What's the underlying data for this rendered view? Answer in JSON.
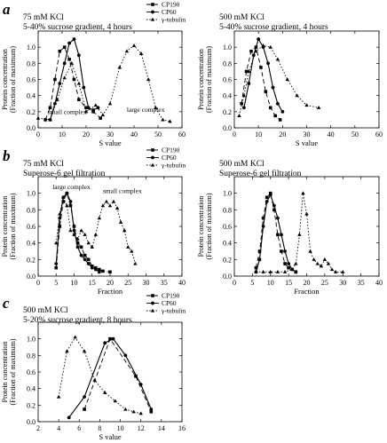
{
  "panel_letters": [
    "a",
    "b",
    "c"
  ],
  "chart_data": [
    {
      "id": "a-left",
      "panel": "a",
      "type": "line",
      "title_lines": [
        "75 mM KCl",
        "5-40% sucrose gradient, 4 hours"
      ],
      "xlabel": "S value",
      "ylabel": [
        "Protein concentration",
        "(Fraction of maximum)"
      ],
      "xlim": [
        0,
        60
      ],
      "ylim": [
        0,
        1.2
      ],
      "xticks": [
        0,
        10,
        20,
        30,
        40,
        50,
        60
      ],
      "yticks": [
        0,
        0.2,
        0.4,
        0.6,
        0.8,
        1.0
      ],
      "legend": [
        "CP190",
        "CP60",
        "γ-tubulin"
      ],
      "annotations": [
        {
          "text": "small complex",
          "x": 4,
          "y": 0.17
        },
        {
          "text": "large complex",
          "x": 37,
          "y": 0.2
        }
      ],
      "series": [
        {
          "name": "CP190",
          "style": "dashed",
          "marker": "square",
          "x": [
            3,
            5,
            7,
            9,
            11,
            13,
            15,
            17,
            20,
            23,
            26
          ],
          "y": [
            0.1,
            0.25,
            0.6,
            0.95,
            1.0,
            0.85,
            0.6,
            0.35,
            0.25,
            0.2,
            0.12
          ]
        },
        {
          "name": "CP60",
          "style": "solid",
          "marker": "circle",
          "x": [
            5,
            7,
            9,
            11,
            13,
            15,
            17,
            19,
            21,
            23,
            25
          ],
          "y": [
            0.1,
            0.3,
            0.55,
            0.8,
            1.05,
            1.1,
            0.9,
            0.5,
            0.25,
            0.22,
            0.25
          ]
        },
        {
          "name": "γ-tubulin",
          "style": "dotted",
          "marker": "triangle",
          "x": [
            0,
            5,
            8,
            11,
            14,
            17,
            20,
            24,
            27,
            30,
            34,
            37,
            40,
            43,
            46,
            49,
            52,
            55
          ],
          "y": [
            0.12,
            0.1,
            0.35,
            0.62,
            0.8,
            0.55,
            0.2,
            0.28,
            0.16,
            0.3,
            0.75,
            0.95,
            1.02,
            0.92,
            0.6,
            0.25,
            0.1,
            0.08
          ]
        }
      ]
    },
    {
      "id": "a-right",
      "panel": "a",
      "type": "line",
      "title_lines": [
        "500 mM KCl",
        "5-40% sucrose gradient, 4 hours"
      ],
      "xlabel": "S value",
      "ylabel": [
        "Protein concentration",
        "(Fraction of maximum)"
      ],
      "xlim": [
        0,
        60
      ],
      "ylim": [
        0,
        1.2
      ],
      "xticks": [
        0,
        10,
        20,
        30,
        40,
        50,
        60
      ],
      "yticks": [
        0,
        0.2,
        0.4,
        0.6,
        0.8,
        1.0
      ],
      "legend": [],
      "annotations": [],
      "series": [
        {
          "name": "CP190",
          "style": "dashed",
          "marker": "square",
          "x": [
            3,
            5,
            7,
            9,
            11,
            13,
            15,
            17,
            19
          ],
          "y": [
            0.3,
            0.7,
            0.95,
            1.0,
            0.75,
            0.45,
            0.25,
            0.15,
            0.1
          ]
        },
        {
          "name": "CP60",
          "style": "solid",
          "marker": "circle",
          "x": [
            4,
            6,
            8,
            10,
            12,
            14,
            16,
            18,
            20
          ],
          "y": [
            0.25,
            0.55,
            0.9,
            1.1,
            1.0,
            0.8,
            0.5,
            0.3,
            0.2
          ]
        },
        {
          "name": "γ-tubulin",
          "style": "dotted",
          "marker": "triangle",
          "x": [
            2,
            4,
            6,
            9,
            12,
            15,
            18,
            22,
            26,
            30,
            35
          ],
          "y": [
            0.15,
            0.4,
            0.7,
            0.95,
            1.02,
            1.0,
            0.85,
            0.6,
            0.4,
            0.28,
            0.25
          ]
        }
      ]
    },
    {
      "id": "b-left",
      "panel": "b",
      "type": "line",
      "title_lines": [
        "75 mM KCl",
        "Superose-6 gel filtration"
      ],
      "xlabel": "Fraction",
      "ylabel": [
        "Protein concentration",
        "(Fraction of maximum)"
      ],
      "xlim": [
        0,
        40
      ],
      "ylim": [
        0,
        1.2
      ],
      "xticks": [
        0,
        5,
        10,
        15,
        20,
        25,
        30,
        35,
        40
      ],
      "yticks": [
        0,
        0.2,
        0.4,
        0.6,
        0.8,
        1.0
      ],
      "legend": [
        "CP190",
        "CP60",
        "γ-tubulin"
      ],
      "annotations": [
        {
          "text": "large complex",
          "x": 4,
          "y": 1.05
        },
        {
          "text": "small complex",
          "x": 18,
          "y": 1.0
        }
      ],
      "series": [
        {
          "name": "CP190",
          "style": "dashed",
          "marker": "square",
          "x": [
            5,
            6,
            7,
            8,
            9,
            10,
            11,
            12,
            13,
            14,
            15,
            16,
            17,
            18,
            20
          ],
          "y": [
            0.1,
            0.6,
            0.9,
            1.0,
            0.85,
            0.6,
            0.4,
            0.35,
            0.25,
            0.2,
            0.12,
            0.1,
            0.08,
            0.06,
            0.05
          ]
        },
        {
          "name": "CP60",
          "style": "solid",
          "marker": "circle",
          "x": [
            5,
            6,
            7,
            8,
            9,
            10,
            11,
            12,
            13,
            14,
            15,
            16,
            17
          ],
          "y": [
            0.15,
            0.7,
            0.95,
            1.0,
            0.9,
            0.55,
            0.35,
            0.25,
            0.2,
            0.15,
            0.1,
            0.08,
            0.05
          ]
        },
        {
          "name": "γ-tubulin",
          "style": "dotted",
          "marker": "triangle",
          "x": [
            5,
            6,
            7,
            8,
            9,
            10,
            11,
            12,
            13,
            14,
            15,
            16,
            17,
            18,
            19,
            20,
            21,
            22,
            23,
            24,
            25,
            26,
            27
          ],
          "y": [
            0.4,
            0.75,
            0.95,
            0.85,
            0.55,
            0.5,
            0.45,
            0.55,
            0.5,
            0.4,
            0.35,
            0.5,
            0.7,
            0.85,
            0.9,
            0.85,
            0.9,
            0.82,
            0.65,
            0.55,
            0.35,
            0.3,
            0.15
          ]
        }
      ]
    },
    {
      "id": "b-right",
      "panel": "b",
      "type": "line",
      "title_lines": [
        "500 mM KCl",
        "Superose-6 gel filtration"
      ],
      "xlabel": "Fraction",
      "ylabel": [
        "Protein concentration",
        "(Fraction of maximum)"
      ],
      "xlim": [
        0,
        40
      ],
      "ylim": [
        0,
        1.2
      ],
      "xticks": [
        0,
        5,
        10,
        15,
        20,
        25,
        30,
        35,
        40
      ],
      "yticks": [
        0,
        0.2,
        0.4,
        0.6,
        0.8,
        1.0
      ],
      "legend": [],
      "annotations": [],
      "series": [
        {
          "name": "CP190",
          "style": "dashed",
          "marker": "square",
          "x": [
            6,
            7,
            8,
            9,
            10,
            11,
            12,
            13,
            14,
            15,
            17
          ],
          "y": [
            0.1,
            0.3,
            0.7,
            0.95,
            1.0,
            0.8,
            0.5,
            0.3,
            0.15,
            0.1,
            0.05
          ]
        },
        {
          "name": "CP60",
          "style": "solid",
          "marker": "circle",
          "x": [
            6,
            7,
            8,
            9,
            10,
            11,
            12,
            13,
            14,
            15,
            16,
            17
          ],
          "y": [
            0.05,
            0.2,
            0.6,
            0.9,
            0.98,
            0.85,
            0.7,
            0.5,
            0.3,
            0.15,
            0.08,
            0.05
          ]
        },
        {
          "name": "γ-tubulin",
          "style": "dotted",
          "marker": "triangle",
          "x": [
            6,
            8,
            10,
            12,
            14,
            16,
            17,
            18,
            19,
            20,
            21,
            22,
            23,
            24,
            25,
            26,
            27,
            28,
            30
          ],
          "y": [
            0.05,
            0.05,
            0.05,
            0.05,
            0.05,
            0.08,
            0.15,
            0.5,
            1.0,
            0.75,
            0.3,
            0.2,
            0.15,
            0.12,
            0.2,
            0.15,
            0.08,
            0.05,
            0.05
          ]
        }
      ]
    },
    {
      "id": "c",
      "panel": "c",
      "type": "line",
      "title_lines": [
        "500 mM KCl",
        "5-20% sucrose gradient, 8 hours"
      ],
      "xlabel": "S value",
      "ylabel": [
        "Protein concentration",
        "(Fraction of maximum)"
      ],
      "xlim": [
        2,
        16
      ],
      "ylim": [
        0,
        1.2
      ],
      "xticks": [
        2,
        4,
        6,
        8,
        10,
        12,
        14,
        16
      ],
      "yticks": [
        0,
        0.2,
        0.4,
        0.6,
        0.8,
        1.0
      ],
      "legend": [
        "CP190",
        "CP60",
        "γ-tubulin"
      ],
      "annotations": [],
      "series": [
        {
          "name": "CP190",
          "style": "dashed",
          "marker": "square",
          "x": [
            6.5,
            9,
            11.5,
            13
          ],
          "y": [
            0.15,
            1.0,
            0.55,
            0.12
          ]
        },
        {
          "name": "CP60",
          "style": "solid",
          "marker": "circle",
          "x": [
            5,
            6.5,
            8.5,
            9.3,
            10.5,
            12,
            13
          ],
          "y": [
            0.05,
            0.3,
            0.95,
            1.0,
            0.8,
            0.45,
            0.15
          ]
        },
        {
          "name": "γ-tubulin",
          "style": "dotted",
          "marker": "triangle",
          "x": [
            4,
            4.8,
            5.6,
            6.5,
            7.5,
            8.5,
            9.5,
            10.5,
            11.3,
            12
          ],
          "y": [
            0.3,
            0.85,
            1.02,
            0.85,
            0.5,
            0.35,
            0.25,
            0.15,
            0.12,
            0.1
          ]
        }
      ]
    }
  ]
}
